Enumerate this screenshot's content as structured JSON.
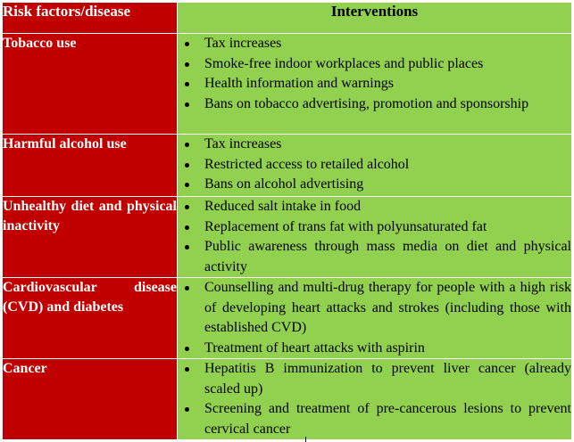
{
  "header": {
    "col1": "Risk factors/disease",
    "col2": "Interventions"
  },
  "rows": [
    {
      "risk": "Tobacco use",
      "interventions": [
        "Tax increases",
        "Smoke-free indoor workplaces and public places",
        "Health information and warnings",
        "Bans on tobacco advertising, promotion and sponsorship"
      ]
    },
    {
      "risk": "Harmful alcohol use",
      "interventions": [
        "Tax increases",
        "Restricted access to retailed alcohol",
        "Bans on alcohol advertising"
      ]
    },
    {
      "risk": "Unhealthy diet and physical inactivity",
      "interventions": [
        "Reduced salt intake in food",
        "Replacement of trans fat with polyunsaturated fat",
        "Public awareness through mass media on diet and physical activity"
      ]
    },
    {
      "risk": "Cardiovascular disease (CVD) and diabetes",
      "interventions": [
        "Counselling and multi-drug therapy for people with a high risk of developing heart attacks and strokes (including those with established CVD)",
        "Treatment of heart attacks with aspirin"
      ]
    },
    {
      "risk": "Cancer",
      "interventions": [
        "Hepatitis B immunization to prevent liver cancer (already scaled up)",
        "Screening and treatment of pre-cancerous lesions to prevent cervical cancer"
      ]
    }
  ],
  "colors": {
    "risk_bg": "#c00000",
    "intervention_bg": "#92d050",
    "risk_text": "#ffffff",
    "intervention_text": "#000000"
  }
}
